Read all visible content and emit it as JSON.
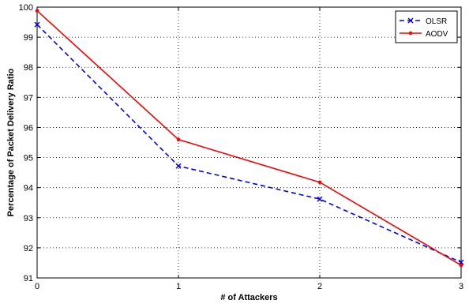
{
  "chart_data": {
    "type": "line",
    "title": "",
    "xlabel": "# of Attackers",
    "ylabel": "Percentage of Packet Delivery Ratio",
    "x": [
      0,
      1,
      2,
      3
    ],
    "xlim": [
      0,
      3
    ],
    "ylim": [
      91,
      100
    ],
    "xticks": [
      "0",
      "1",
      "2",
      "3"
    ],
    "yticks": [
      "91",
      "92",
      "93",
      "94",
      "95",
      "96",
      "97",
      "98",
      "99",
      "100"
    ],
    "grid": true,
    "legend_position": "top-right",
    "series": [
      {
        "name": "OLSR",
        "values": [
          99.42,
          94.72,
          93.62,
          91.52
        ],
        "color": "#0000ff",
        "line_style": "dashed",
        "marker": "x"
      },
      {
        "name": "AODV",
        "values": [
          99.88,
          95.6,
          94.18,
          91.42
        ],
        "color": "#ff0000",
        "line_style": "solid",
        "marker": "dot"
      }
    ]
  }
}
